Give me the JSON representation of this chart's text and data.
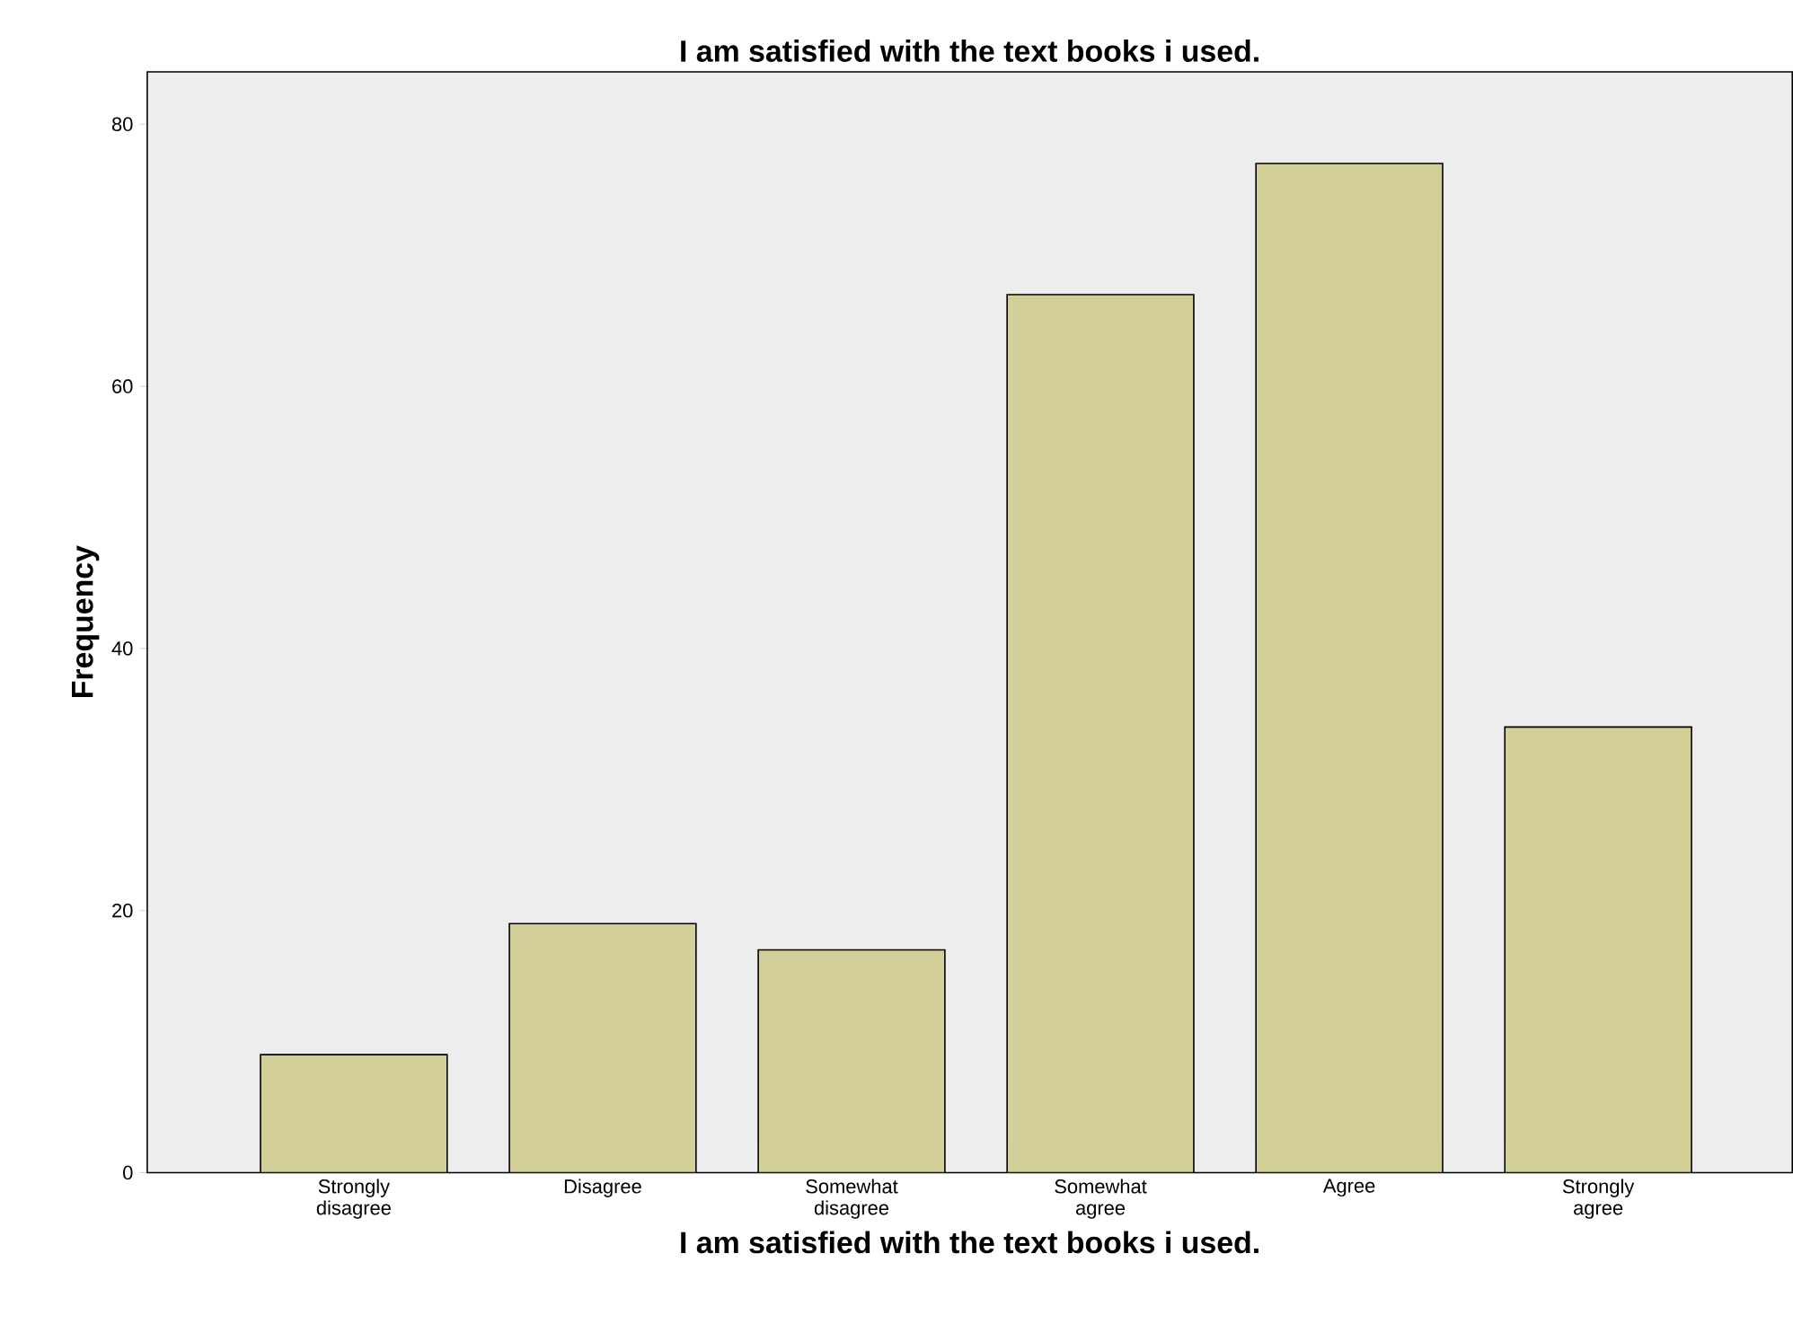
{
  "chart_data": {
    "type": "bar",
    "title": "I am satisfied with the text books i used.",
    "xlabel": "I am satisfied with the text books i used.",
    "ylabel": "Frequency",
    "categories": [
      "Strongly disagree",
      "Disagree",
      "Somewhat disagree",
      "Somewhat agree",
      "Agree",
      "Strongly agree"
    ],
    "values": [
      9,
      19,
      17,
      67,
      77,
      34
    ],
    "color": "#d3cf98",
    "ylim": [
      0,
      84
    ],
    "yticks": [
      0,
      20,
      40,
      60,
      80
    ]
  }
}
